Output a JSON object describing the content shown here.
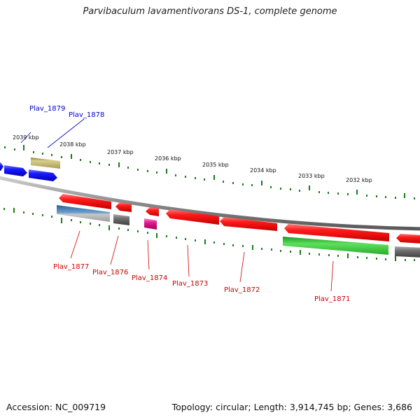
{
  "title": "Parvibaculum lavamentivorans DS-1, complete genome",
  "footer": {
    "accession": "Accession: NC_009719",
    "summary": "Topology: circular; Length: 3,914,745 bp; Genes: 3,686"
  },
  "scale_labels": [
    "2039 kbp",
    "2038 kbp",
    "2037 kbp",
    "2036 kbp",
    "2035 kbp",
    "2034 kbp",
    "2033 kbp",
    "2032 kbp"
  ],
  "gene_labels": {
    "forward": [
      "Plav_1879",
      "Plav_1878"
    ],
    "reverse": [
      "Plav_1877",
      "Plav_1876",
      "Plav_1874",
      "Plav_1873",
      "Plav_1872",
      "Plav_1871"
    ]
  },
  "colors": {
    "forward_label": "#0000cc",
    "reverse_label": "#cc0000",
    "tick": "#1a7a1a",
    "backbone": "#8a8a8a",
    "forward_gene": "#1010e0",
    "reverse_gene": "#ee1111",
    "khaki_gene": "#b8ad6a",
    "steelblue_gene": "#4f86b8",
    "gray_gene": "#6e6e6e",
    "magenta_gene": "#e0188c",
    "green_gene": "#2fbf2f"
  }
}
